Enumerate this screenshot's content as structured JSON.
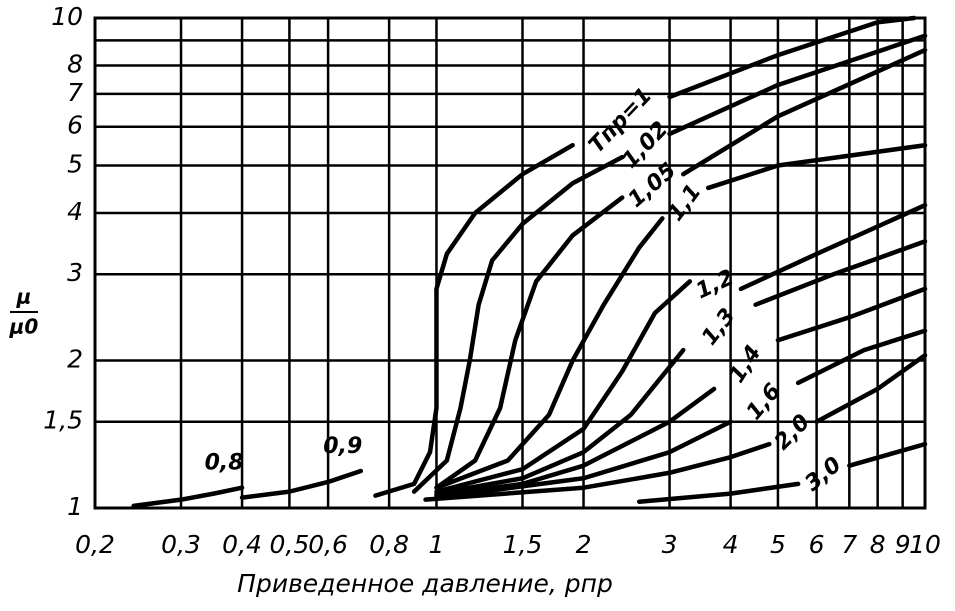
{
  "chart_data": {
    "type": "line",
    "xlabel": "Приведенное давление, pпр",
    "ylabel_top": "μ",
    "ylabel_bottom": "μ0",
    "log_x": true,
    "log_y": true,
    "grid": true,
    "color": "#000000",
    "xlim": [
      0.2,
      10
    ],
    "ylim": [
      1,
      10
    ],
    "xticks": [
      {
        "value": 0.2,
        "label": "0,2"
      },
      {
        "value": 0.3,
        "label": "0,3"
      },
      {
        "value": 0.4,
        "label": "0,4"
      },
      {
        "value": 0.5,
        "label": "0,5"
      },
      {
        "value": 0.6,
        "label": "0,6"
      },
      {
        "value": 0.8,
        "label": "0,8"
      },
      1,
      {
        "value": 1.5,
        "label": "1,5"
      },
      2,
      3,
      4,
      5,
      6,
      7,
      8,
      9,
      10
    ],
    "yticks": [
      1,
      {
        "value": 1.5,
        "label": "1,5"
      },
      2,
      3,
      4,
      5,
      6,
      7,
      8,
      10
    ],
    "yminor_ticks": [
      9
    ],
    "series": [
      {
        "name": "0,8",
        "x": [
          0.24,
          0.3,
          0.35,
          0.4
        ],
        "values": [
          1.01,
          1.04,
          1.07,
          1.1
        ]
      },
      {
        "name": "0,9",
        "x": [
          0.4,
          0.5,
          0.6,
          0.7
        ],
        "values": [
          1.05,
          1.08,
          1.13,
          1.19
        ]
      },
      {
        "name": "Tпр=1",
        "x": [
          0.75,
          0.9,
          0.97,
          1.0,
          1.0,
          1.0,
          1.05,
          1.2,
          1.5,
          1.9,
          2.4,
          3,
          5,
          8,
          9.5
        ],
        "values": [
          1.06,
          1.12,
          1.3,
          1.6,
          2.2,
          2.8,
          3.3,
          4.0,
          4.8,
          5.5,
          null,
          6.9,
          8.4,
          9.8,
          10
        ]
      },
      {
        "name": "1,02",
        "x": [
          0.9,
          1.05,
          1.12,
          1.17,
          1.22,
          1.3,
          1.5,
          1.9,
          2.4,
          2.6,
          3.0,
          5,
          10
        ],
        "values": [
          1.08,
          1.25,
          1.6,
          2.0,
          2.6,
          3.2,
          3.8,
          4.6,
          5.2,
          null,
          5.8,
          7.3,
          9.2
        ]
      },
      {
        "name": "1,05",
        "x": [
          1.0,
          1.2,
          1.35,
          1.45,
          1.6,
          1.9,
          2.4,
          2.6,
          3.2,
          5,
          10
        ],
        "values": [
          1.1,
          1.25,
          1.6,
          2.2,
          2.9,
          3.6,
          4.3,
          null,
          4.8,
          6.3,
          8.6
        ]
      },
      {
        "name": "1,1",
        "x": [
          1.0,
          1.4,
          1.7,
          1.9,
          2.2,
          2.6,
          2.9,
          3.3,
          3.6,
          5,
          10
        ],
        "values": [
          1.1,
          1.25,
          1.55,
          2.0,
          2.6,
          3.4,
          3.9,
          null,
          4.5,
          5.0,
          5.5
        ]
      },
      {
        "name": "1,2",
        "x": [
          1.0,
          1.5,
          2,
          2.4,
          2.8,
          3.3,
          3.6,
          4.2,
          6,
          10
        ],
        "values": [
          1.08,
          1.2,
          1.45,
          1.9,
          2.5,
          2.9,
          null,
          2.8,
          3.3,
          4.15
        ]
      },
      {
        "name": "1,3",
        "x": [
          1.0,
          1.5,
          2,
          2.5,
          3.2,
          3.7,
          4.5,
          6.5,
          10
        ],
        "values": [
          1.07,
          1.15,
          1.3,
          1.55,
          2.1,
          null,
          2.6,
          3.0,
          3.5
        ]
      },
      {
        "name": "1,4",
        "x": [
          1.0,
          1.5,
          2,
          3,
          3.7,
          4.2,
          5,
          7,
          10
        ],
        "values": [
          1.06,
          1.12,
          1.22,
          1.5,
          1.75,
          null,
          2.2,
          2.45,
          2.8
        ]
      },
      {
        "name": "1,6",
        "x": [
          1.0,
          2,
          3,
          4,
          4.6,
          5.5,
          7.5,
          10
        ],
        "values": [
          1.05,
          1.15,
          1.3,
          1.5,
          null,
          1.8,
          2.1,
          2.3
        ]
      },
      {
        "name": "2,0",
        "x": [
          0.95,
          2,
          3,
          4,
          4.8,
          5.3,
          6,
          8,
          10
        ],
        "values": [
          1.04,
          1.1,
          1.18,
          1.27,
          1.35,
          null,
          1.5,
          1.75,
          2.05
        ]
      },
      {
        "name": "3,0",
        "x": [
          2.6,
          4,
          5.5,
          6.5,
          7,
          10
        ],
        "values": [
          1.03,
          1.07,
          1.12,
          null,
          1.22,
          1.35
        ]
      }
    ]
  }
}
